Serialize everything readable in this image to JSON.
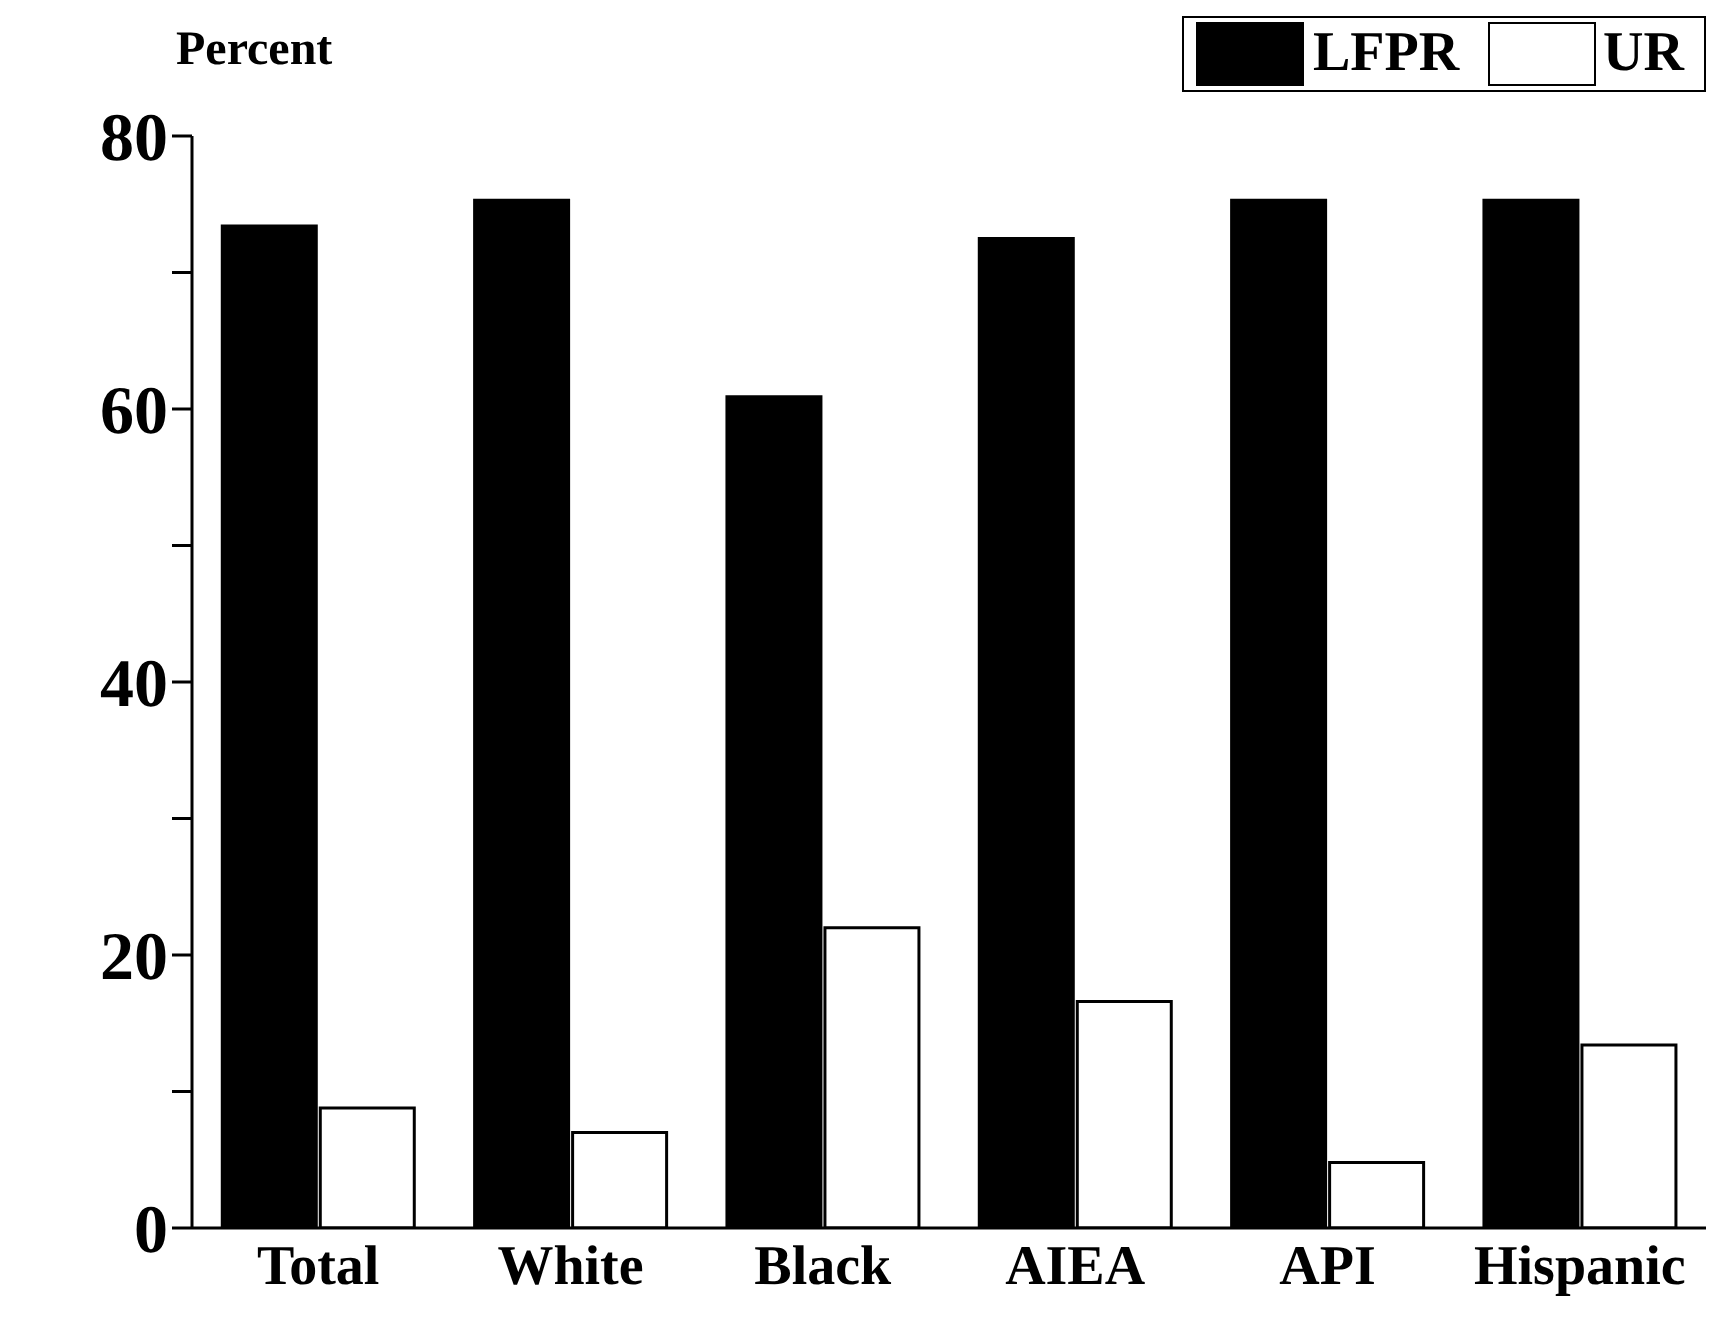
{
  "chart_data": {
    "type": "bar",
    "ylabel": "Percent",
    "categories": [
      "Total",
      "White",
      "Black",
      "AIEA",
      "API",
      "Hispanic"
    ],
    "series": [
      {
        "name": "LFPR",
        "color": "#000000",
        "values": [
          73.4,
          75.3,
          60.9,
          72.5,
          75.3,
          75.3
        ]
      },
      {
        "name": "UR",
        "color": "#ffffff",
        "values": [
          8.8,
          7.0,
          22.0,
          16.6,
          4.8,
          13.4
        ]
      }
    ],
    "ylim": [
      0,
      80
    ],
    "yticks": [
      0,
      {
        "value": 10,
        "label": null
      },
      20,
      {
        "value": 30,
        "label": null
      },
      40,
      {
        "value": 50,
        "label": null
      },
      60,
      {
        "value": 70,
        "label": null
      },
      80
    ],
    "grid": false,
    "legend": "top right"
  }
}
